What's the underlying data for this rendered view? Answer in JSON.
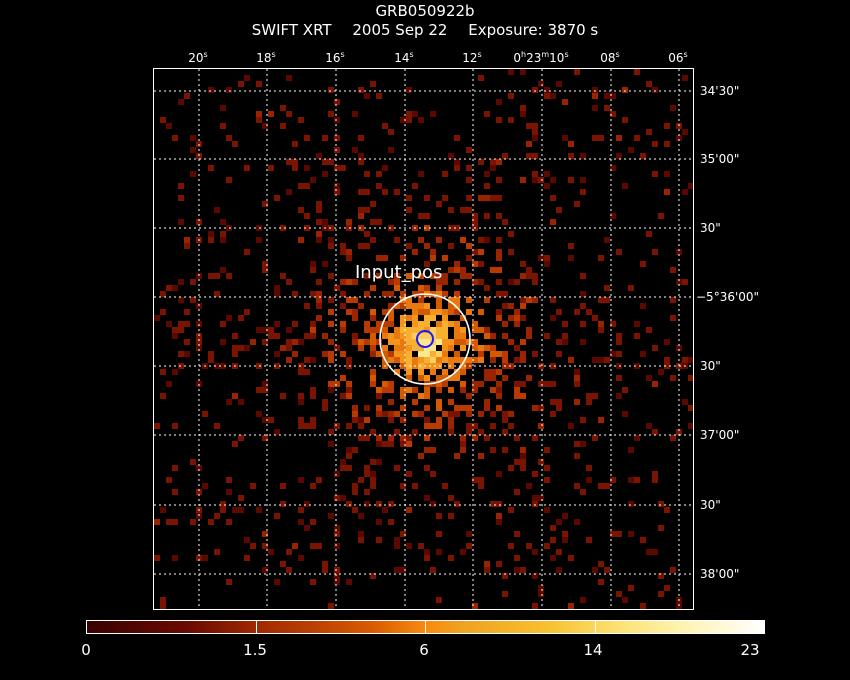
{
  "header": {
    "object": "GRB050922b",
    "instrument": "SWIFT XRT",
    "date": "2005 Sep 22",
    "exposure": "Exposure: 3870 s"
  },
  "ra_ticks": [
    "20s",
    "18s",
    "16s",
    "14s",
    "12s",
    "0h23m10s",
    "08s",
    "06s"
  ],
  "ra_ticks_display": [
    {
      "sec": "20",
      "unit": "s"
    },
    {
      "sec": "18",
      "unit": "s"
    },
    {
      "sec": "16",
      "unit": "s"
    },
    {
      "sec": "14",
      "unit": "s"
    },
    {
      "sec": "12",
      "unit": "s"
    },
    {
      "prefix": "0h23m10",
      "unit": "s"
    },
    {
      "sec": "08",
      "unit": "s"
    },
    {
      "sec": "06",
      "unit": "s"
    }
  ],
  "dec_ticks": [
    "34'30\"",
    "35'00\"",
    "30\"",
    "−5°36'00\"",
    "30\"",
    "37'00\"",
    "30\"",
    "38'00\""
  ],
  "source_label": "Input_pos",
  "colorbar": {
    "labels": [
      "0",
      "1.5",
      "6",
      "14",
      "23"
    ],
    "min": 0,
    "max": 23
  },
  "colors": {
    "background": "#000000",
    "grid": "#ffffff",
    "source_circle": "#ffffff",
    "centroid_circle": "#1a1aff"
  }
}
